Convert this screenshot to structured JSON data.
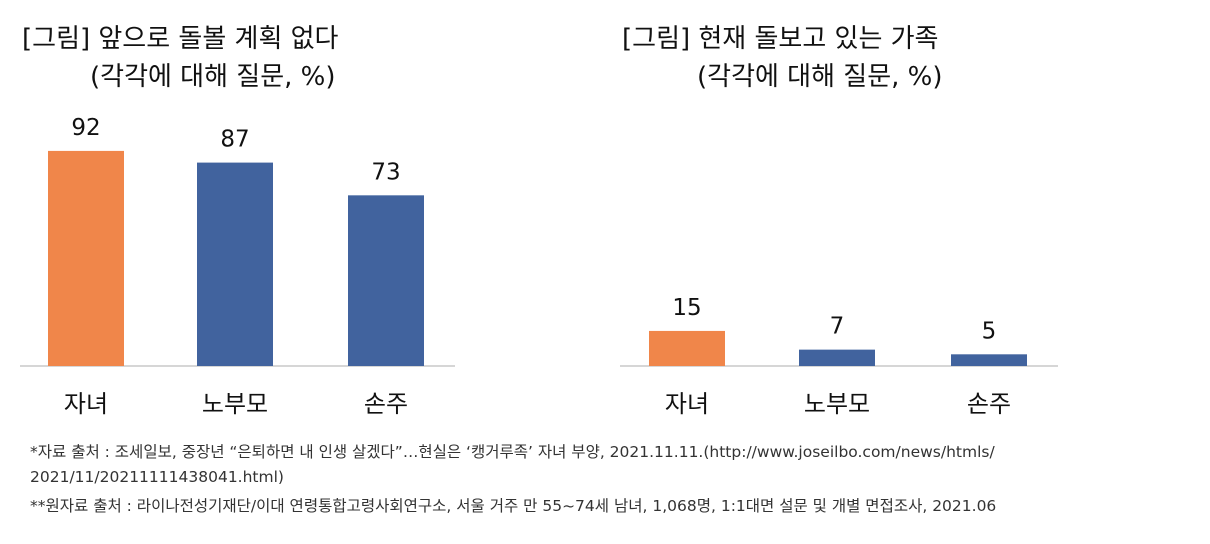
{
  "chart_data": [
    {
      "type": "bar",
      "title": "[그림] 앞으로 돌볼 계획 없다",
      "subtitle": "(각각에 대해 질문, %)",
      "categories": [
        "자녀",
        "노부모",
        "손주"
      ],
      "values": [
        92,
        87,
        73
      ],
      "colors": [
        "#F0864A",
        "#41639E",
        "#41639E"
      ],
      "ylim": [
        0,
        100
      ],
      "grid": false
    },
    {
      "type": "bar",
      "title": "[그림] 현재 돌보고 있는 가족",
      "subtitle": "(각각에 대해 질문, %)",
      "categories": [
        "자녀",
        "노부모",
        "손주"
      ],
      "values": [
        15,
        7,
        5
      ],
      "colors": [
        "#F0864A",
        "#41639E",
        "#41639E"
      ],
      "ylim": [
        0,
        100
      ],
      "grid": false
    }
  ],
  "footnotes": {
    "line1": "*자료 출처 : 조세일보, 중장년 “은퇴하면 내 인생 살겠다”…현실은 ‘캥거루족’ 자녀 부양, 2021.11.11.(http://www.joseilbo.com/news/htmls/",
    "line2": "2021/11/20211111438041.html)",
    "line3": "**원자료 출처 : 라이나전성기재단/이대 연령통합고령사회연구소, 서울 거주 만 55~74세 남녀, 1,068명, 1:1대면 설문 및 개별 면접조사, 2021.06"
  }
}
